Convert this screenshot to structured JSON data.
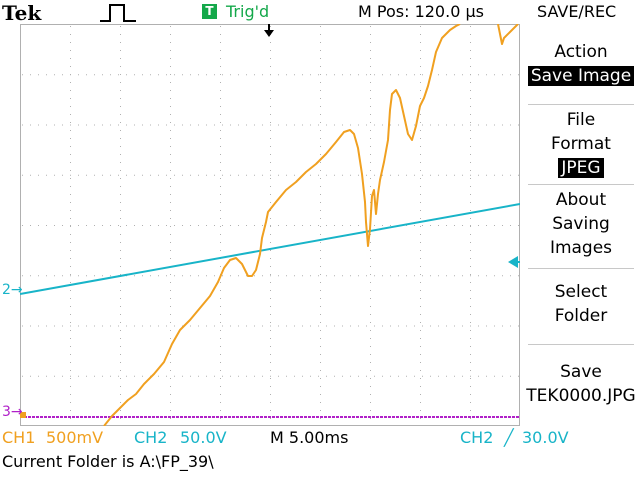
{
  "header": {
    "brand": "Tek",
    "trigger_badge": "T",
    "trigger_status": "Trig'd",
    "m_pos": "M Pos: 120.0 µs",
    "menu_title": "SAVE/REC"
  },
  "menu": {
    "action_label": "Action",
    "action_value": "Save Image",
    "file_format_line1": "File",
    "file_format_line2": "Format",
    "file_format_value": "JPEG",
    "about_line1": "About",
    "about_line2": "Saving",
    "about_line3": "Images",
    "select_line1": "Select",
    "select_line2": "Folder",
    "save_line1": "Save",
    "save_line2": "TEK0000.JPG"
  },
  "markers": {
    "ch2_marker": "2",
    "ch3_marker": "3"
  },
  "status": {
    "ch1_name": "CH1",
    "ch1_scale": "500mV",
    "ch2_name": "CH2",
    "ch2_scale": "50.0V",
    "timebase": "M 5.00ms",
    "trig_source": "CH2",
    "trig_slope": "╱",
    "trig_level": "30.0V",
    "current_folder": "Current Folder is A:\\FP_39\\"
  },
  "colors": {
    "ch1": "#f0a020",
    "ch2": "#18b4c8",
    "ch3": "#b020c8",
    "trigger_badge": "#14a84a",
    "grid": "#b0b0b0"
  }
}
